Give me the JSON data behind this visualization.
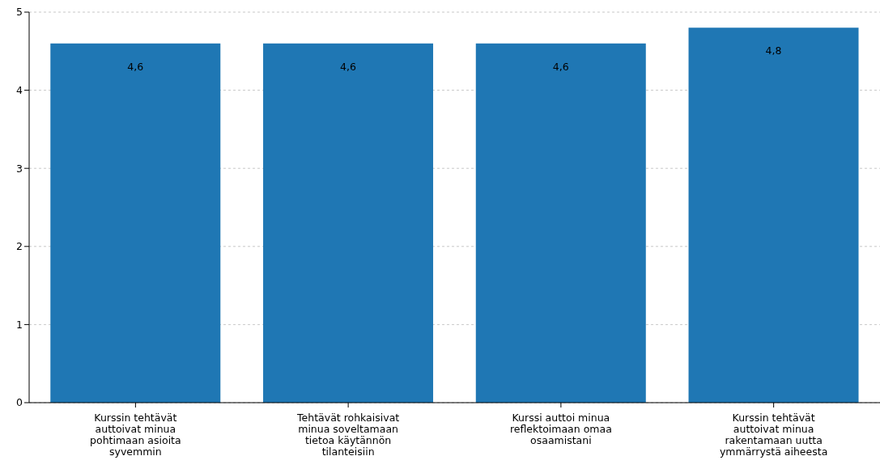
{
  "chart_data": {
    "type": "bar",
    "categories": [
      "Kurssin tehtävät auttoivat minua pohtimaan asioita syvemmin",
      "Tehtävät rohkaisivat minua soveltamaan tietoa käytännön tilanteisiin",
      "Kurssi auttoi minua reflektoimaan omaa osaamistani",
      "Kurssin tehtävät auttoivat minua rakentamaan uutta ymmärrystä aiheesta"
    ],
    "values": [
      4.6,
      4.6,
      4.6,
      4.8
    ],
    "value_labels": [
      "4,6",
      "4,6",
      "4,6",
      "4,8"
    ],
    "color": "#1f77b4",
    "ylim": [
      0,
      5
    ],
    "yticks": [
      0,
      1,
      2,
      3,
      4,
      5
    ],
    "grid": "y"
  }
}
